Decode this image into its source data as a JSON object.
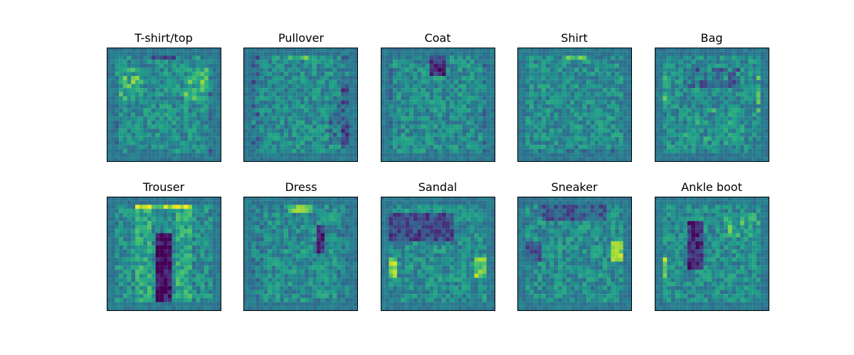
{
  "chart_data": [
    {
      "type": "heatmap",
      "title": "T-shirt/top",
      "rows": 28,
      "cols": 28,
      "colormap": "viridis",
      "seed": 11,
      "pattern": "tshirt",
      "axes_visible": false
    },
    {
      "type": "heatmap",
      "title": "Pullover",
      "rows": 28,
      "cols": 28,
      "colormap": "viridis",
      "seed": 23,
      "pattern": "pullover",
      "axes_visible": false
    },
    {
      "type": "heatmap",
      "title": "Coat",
      "rows": 28,
      "cols": 28,
      "colormap": "viridis",
      "seed": 37,
      "pattern": "coat",
      "axes_visible": false
    },
    {
      "type": "heatmap",
      "title": "Shirt",
      "rows": 28,
      "cols": 28,
      "colormap": "viridis",
      "seed": 41,
      "pattern": "shirt",
      "axes_visible": false
    },
    {
      "type": "heatmap",
      "title": "Bag",
      "rows": 28,
      "cols": 28,
      "colormap": "viridis",
      "seed": 53,
      "pattern": "bag",
      "axes_visible": false
    },
    {
      "type": "heatmap",
      "title": "Trouser",
      "rows": 28,
      "cols": 28,
      "colormap": "viridis",
      "seed": 67,
      "pattern": "trouser",
      "axes_visible": false
    },
    {
      "type": "heatmap",
      "title": "Dress",
      "rows": 28,
      "cols": 28,
      "colormap": "viridis",
      "seed": 71,
      "pattern": "dress",
      "axes_visible": false
    },
    {
      "type": "heatmap",
      "title": "Sandal",
      "rows": 28,
      "cols": 28,
      "colormap": "viridis",
      "seed": 83,
      "pattern": "sandal",
      "axes_visible": false
    },
    {
      "type": "heatmap",
      "title": "Sneaker",
      "rows": 28,
      "cols": 28,
      "colormap": "viridis",
      "seed": 97,
      "pattern": "sneaker",
      "axes_visible": false
    },
    {
      "type": "heatmap",
      "title": "Ankle boot",
      "rows": 28,
      "cols": 28,
      "colormap": "viridis",
      "seed": 103,
      "pattern": "boot",
      "axes_visible": false
    }
  ]
}
